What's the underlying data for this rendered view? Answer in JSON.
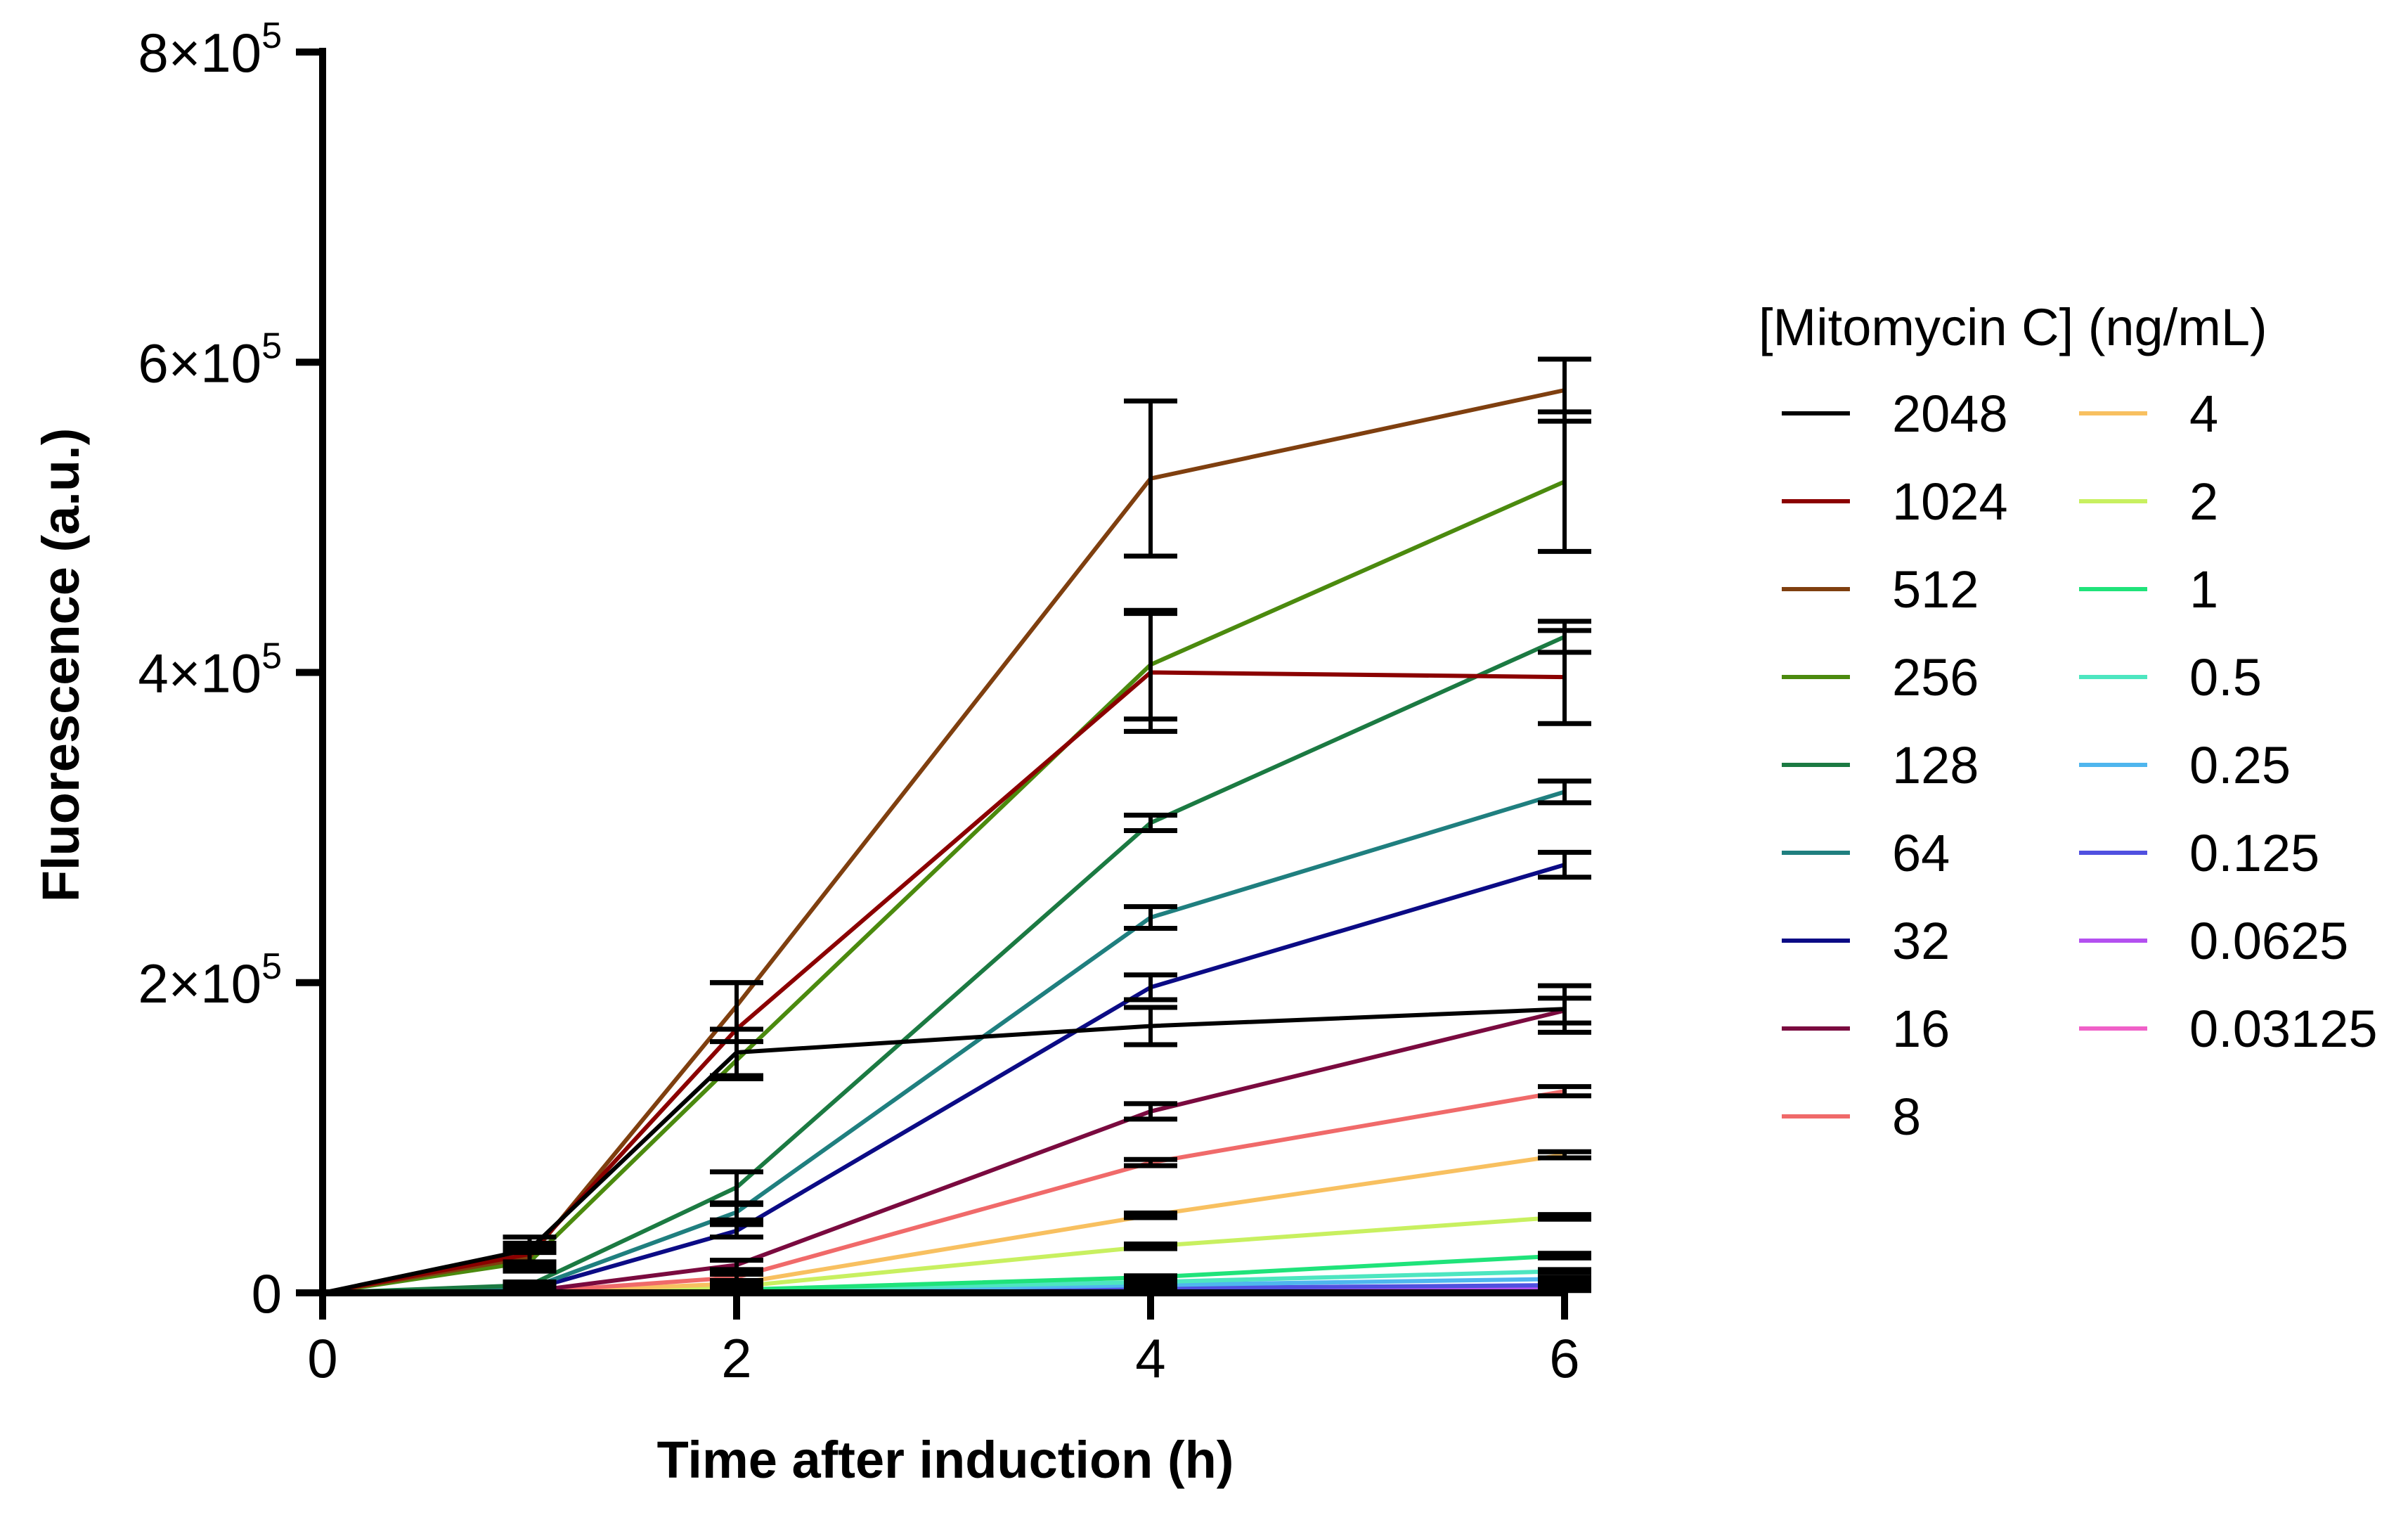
{
  "chart_data": {
    "type": "line",
    "xlabel": "Time after induction (h)",
    "ylabel": "Fluorescence (a.u.)",
    "xlim": [
      0,
      6
    ],
    "ylim": [
      0,
      800000
    ],
    "x": [
      0,
      1,
      2,
      4,
      6
    ],
    "x_ticks": [
      0,
      2,
      4,
      6
    ],
    "x_tick_labels": [
      "0",
      "2",
      "4",
      "6"
    ],
    "y_ticks": [
      {
        "value": 0,
        "mantissa": "0",
        "exp": ""
      },
      {
        "value": 200000,
        "mantissa": "2×10",
        "exp": "5"
      },
      {
        "value": 400000,
        "mantissa": "4×10",
        "exp": "5"
      },
      {
        "value": 600000,
        "mantissa": "6×10",
        "exp": "5"
      },
      {
        "value": 800000,
        "mantissa": "8×10",
        "exp": "5"
      }
    ],
    "grid": false,
    "error_bars": true,
    "legend_title": "[Mitomycin C] (ng/mL)",
    "legend_position": "right",
    "series": [
      {
        "name": "2048",
        "color": "#000000",
        "values": [
          0,
          28000,
          155000,
          172000,
          183000
        ],
        "errors": [
          0,
          8000,
          15000,
          12000,
          15000
        ]
      },
      {
        "name": "1024",
        "color": "#8b0000",
        "values": [
          0,
          25000,
          170000,
          400000,
          397000
        ],
        "errors": [
          0,
          7000,
          30000,
          38000,
          30000
        ]
      },
      {
        "name": "512",
        "color": "#7f3f0f",
        "values": [
          0,
          23000,
          185000,
          525000,
          582000
        ],
        "errors": [
          0,
          6000,
          15000,
          50000,
          20000
        ]
      },
      {
        "name": "256",
        "color": "#4b8a0e",
        "values": [
          0,
          20000,
          150000,
          405000,
          523000
        ],
        "errors": [
          0,
          6000,
          12000,
          35000,
          45000
        ]
      },
      {
        "name": "128",
        "color": "#1b7a42",
        "values": [
          0,
          5000,
          68000,
          303000,
          423000
        ],
        "errors": [
          0,
          2000,
          10000,
          5000,
          10000
        ]
      },
      {
        "name": "64",
        "color": "#1f7f7f",
        "values": [
          0,
          3000,
          52000,
          242000,
          323000
        ],
        "errors": [
          0,
          1500,
          5000,
          7000,
          7000
        ]
      },
      {
        "name": "32",
        "color": "#0b0b85",
        "values": [
          0,
          2000,
          40000,
          197000,
          276000
        ],
        "errors": [
          0,
          1000,
          4000,
          8000,
          8000
        ]
      },
      {
        "name": "16",
        "color": "#7a0a3f",
        "values": [
          0,
          1000,
          18000,
          117000,
          182000
        ],
        "errors": [
          0,
          500,
          3000,
          5000,
          8000
        ]
      },
      {
        "name": "8",
        "color": "#f06a6a",
        "values": [
          0,
          500,
          10000,
          84000,
          130000
        ],
        "errors": [
          0,
          300,
          2000,
          2000,
          3000
        ]
      },
      {
        "name": "4",
        "color": "#f8c060",
        "values": [
          0,
          300,
          6000,
          50000,
          89000
        ],
        "errors": [
          0,
          200,
          1500,
          1500,
          2000
        ]
      },
      {
        "name": "2",
        "color": "#c8f060",
        "values": [
          0,
          200,
          4000,
          30000,
          49000
        ],
        "errors": [
          0,
          150,
          1000,
          1500,
          1500
        ]
      },
      {
        "name": "1",
        "color": "#1fe37a",
        "values": [
          0,
          100,
          2000,
          10000,
          24000
        ],
        "errors": [
          0,
          100,
          800,
          1000,
          1500
        ]
      },
      {
        "name": "0.5",
        "color": "#4de6c0",
        "values": [
          0,
          80,
          1500,
          7000,
          14000
        ],
        "errors": [
          0,
          80,
          600,
          800,
          1000
        ]
      },
      {
        "name": "0.25",
        "color": "#4fb6ee",
        "values": [
          0,
          60,
          1000,
          5000,
          9000
        ],
        "errors": [
          0,
          60,
          500,
          700,
          800
        ]
      },
      {
        "name": "0.125",
        "color": "#5050e0",
        "values": [
          0,
          50,
          700,
          3000,
          5000
        ],
        "errors": [
          0,
          50,
          400,
          600,
          700
        ]
      },
      {
        "name": "0.0625",
        "color": "#b450f0",
        "values": [
          0,
          40,
          500,
          2000,
          3000
        ],
        "errors": [
          0,
          40,
          300,
          500,
          600
        ]
      },
      {
        "name": "0.03125",
        "color": "#f060c8",
        "values": [
          0,
          30,
          300,
          1000,
          2000
        ],
        "errors": [
          0,
          30,
          200,
          400,
          500
        ]
      }
    ]
  }
}
